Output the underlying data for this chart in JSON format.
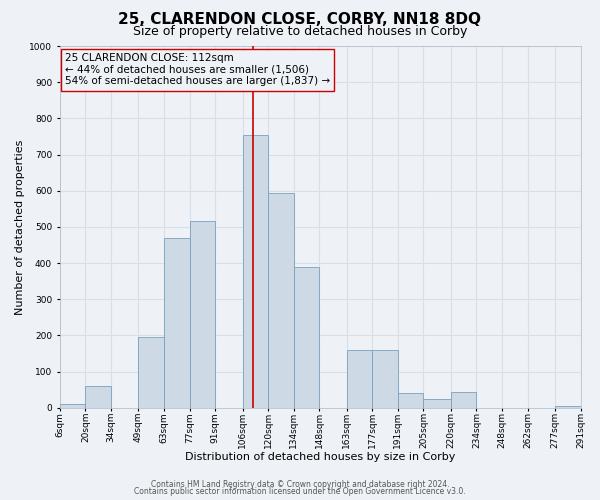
{
  "title": "25, CLARENDON CLOSE, CORBY, NN18 8DQ",
  "subtitle": "Size of property relative to detached houses in Corby",
  "xlabel": "Distribution of detached houses by size in Corby",
  "ylabel": "Number of detached properties",
  "bar_color": "#cdd9e5",
  "bar_edge_color": "#7aa0be",
  "bin_edges": [
    6,
    20,
    34,
    49,
    63,
    77,
    91,
    106,
    120,
    134,
    148,
    163,
    177,
    191,
    205,
    220,
    234,
    248,
    262,
    277,
    291
  ],
  "bar_heights": [
    10,
    60,
    0,
    195,
    470,
    515,
    0,
    755,
    595,
    390,
    0,
    160,
    160,
    40,
    25,
    45,
    0,
    0,
    0,
    5
  ],
  "tick_labels": [
    "6sqm",
    "20sqm",
    "34sqm",
    "49sqm",
    "63sqm",
    "77sqm",
    "91sqm",
    "106sqm",
    "120sqm",
    "134sqm",
    "148sqm",
    "163sqm",
    "177sqm",
    "191sqm",
    "205sqm",
    "220sqm",
    "234sqm",
    "248sqm",
    "262sqm",
    "277sqm",
    "291sqm"
  ],
  "tick_positions": [
    6,
    20,
    34,
    49,
    63,
    77,
    91,
    106,
    120,
    134,
    148,
    163,
    177,
    191,
    205,
    220,
    234,
    248,
    262,
    277,
    291
  ],
  "vline_x": 112,
  "vline_color": "#cc0000",
  "ylim": [
    0,
    1000
  ],
  "yticks": [
    0,
    100,
    200,
    300,
    400,
    500,
    600,
    700,
    800,
    900,
    1000
  ],
  "xlim": [
    6,
    291
  ],
  "annotation_title": "25 CLARENDON CLOSE: 112sqm",
  "annotation_line1": "← 44% of detached houses are smaller (1,506)",
  "annotation_line2": "54% of semi-detached houses are larger (1,837) →",
  "footer1": "Contains HM Land Registry data © Crown copyright and database right 2024.",
  "footer2": "Contains public sector information licensed under the Open Government Licence v3.0.",
  "bg_color": "#eef2f6",
  "grid_color": "#d8dfe8",
  "title_fontsize": 11,
  "subtitle_fontsize": 9,
  "annotation_fontsize": 7.5,
  "axis_fontsize": 8,
  "tick_fontsize": 6.5,
  "footer_fontsize": 5.5
}
